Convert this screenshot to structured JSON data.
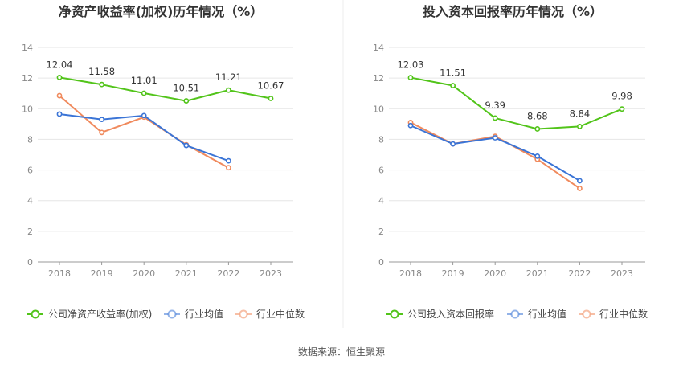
{
  "source_text": "数据来源：恒生聚源",
  "chart_data": [
    {
      "type": "line",
      "title": "净资产收益率(加权)历年情况（%）",
      "categories": [
        "2018",
        "2019",
        "2020",
        "2021",
        "2022",
        "2023"
      ],
      "ylim": [
        0,
        14
      ],
      "yticks": [
        0,
        2,
        4,
        6,
        8,
        10,
        12,
        14
      ],
      "grid": true,
      "legend_position": "bottom",
      "series": [
        {
          "name": "公司净资产收益率(加权)",
          "color": "#52c41a",
          "values": [
            12.04,
            11.58,
            11.01,
            10.51,
            11.21,
            10.67
          ],
          "labels": [
            "12.04",
            "11.58",
            "11.01",
            "10.51",
            "11.21",
            "10.67"
          ]
        },
        {
          "name": "行业均值",
          "color": "#3a74d6",
          "values": [
            9.65,
            9.3,
            9.55,
            7.6,
            6.6,
            null
          ]
        },
        {
          "name": "行业中位数",
          "color": "#f08a5d",
          "values": [
            10.85,
            8.45,
            9.45,
            7.65,
            6.15,
            null
          ]
        }
      ]
    },
    {
      "type": "line",
      "title": "投入资本回报率历年情况（%）",
      "categories": [
        "2018",
        "2019",
        "2020",
        "2021",
        "2022",
        "2023"
      ],
      "ylim": [
        0,
        14
      ],
      "yticks": [
        0,
        2,
        4,
        6,
        8,
        10,
        12,
        14
      ],
      "grid": true,
      "legend_position": "bottom",
      "series": [
        {
          "name": "公司投入资本回报率",
          "color": "#52c41a",
          "values": [
            12.03,
            11.51,
            9.39,
            8.68,
            8.84,
            9.98
          ],
          "labels": [
            "12.03",
            "11.51",
            "9.39",
            "8.68",
            "8.84",
            "9.98"
          ]
        },
        {
          "name": "行业均值",
          "color": "#3a74d6",
          "values": [
            8.9,
            7.7,
            8.1,
            6.9,
            5.3,
            null
          ]
        },
        {
          "name": "行业中位数",
          "color": "#f08a5d",
          "values": [
            9.1,
            7.7,
            8.2,
            6.7,
            4.8,
            null
          ]
        }
      ]
    }
  ]
}
